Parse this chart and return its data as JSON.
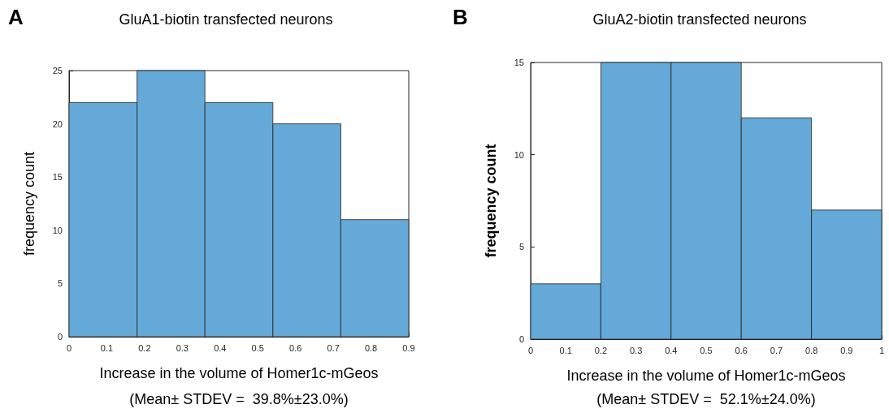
{
  "chart_data": [
    {
      "type": "histogram",
      "title": "GluA1-biotin transfected neurons",
      "xlabel": "Increase in the volume of Homer1c-mGeos",
      "ylabel": "frequency count",
      "annotations": [
        "A",
        "(Mean± STDEV =  39.8%±23.0%)"
      ],
      "bins": [
        0,
        0.18,
        0.36,
        0.54,
        0.72,
        0.9
      ],
      "values": [
        22,
        25,
        22,
        20,
        11
      ],
      "color": "#64a9d8",
      "xlim": [
        0,
        0.9
      ],
      "xticks": [
        0,
        0.1,
        0.2,
        0.3,
        0.4,
        0.5,
        0.6,
        0.7,
        0.8,
        0.9
      ],
      "ylim": [
        0,
        25
      ],
      "yticks": [
        0,
        5,
        10,
        15,
        20,
        25
      ]
    },
    {
      "type": "histogram",
      "title": "GluA2-biotin transfected neurons",
      "xlabel": "Increase in the volume of Homer1c-mGeos",
      "ylabel": "frequency count",
      "annotations": [
        "B",
        "(Mean± STDEV =  52.1%±24.0%)"
      ],
      "bins": [
        0,
        0.2,
        0.4,
        0.6,
        0.8,
        1
      ],
      "values": [
        3,
        15,
        15,
        12,
        7
      ],
      "color": "#64a9d8",
      "xlim": [
        0,
        1
      ],
      "xticks": [
        0,
        0.1,
        0.2,
        0.3,
        0.4,
        0.5,
        0.6,
        0.7,
        0.8,
        0.9,
        1
      ],
      "ylim": [
        0,
        15
      ],
      "yticks": [
        0,
        5,
        10,
        15
      ]
    }
  ]
}
